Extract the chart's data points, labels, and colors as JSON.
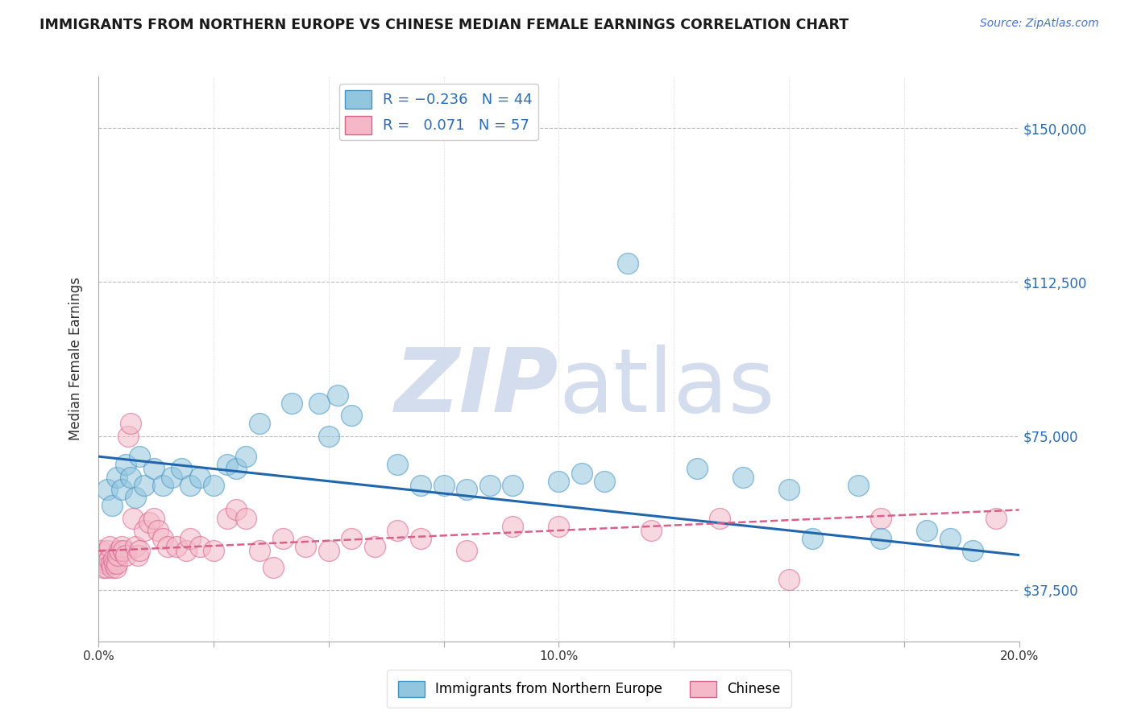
{
  "title": "IMMIGRANTS FROM NORTHERN EUROPE VS CHINESE MEDIAN FEMALE EARNINGS CORRELATION CHART",
  "source": "Source: ZipAtlas.com",
  "ylabel": "Median Female Earnings",
  "xlim": [
    0.0,
    20.0
  ],
  "ylim": [
    25000,
    162500
  ],
  "yticks": [
    37500,
    75000,
    112500,
    150000
  ],
  "ytick_labels": [
    "$37,500",
    "$75,000",
    "$112,500",
    "$150,000"
  ],
  "xticks": [
    0.0,
    2.5,
    5.0,
    7.5,
    10.0,
    12.5,
    15.0,
    17.5,
    20.0
  ],
  "xtick_labels": [
    "0.0%",
    "",
    "",
    "",
    "10.0%",
    "",
    "",
    "",
    "20.0%"
  ],
  "blue_R": -0.236,
  "blue_N": 44,
  "pink_R": 0.071,
  "pink_N": 57,
  "blue_color": "#92c5de",
  "pink_color": "#f4b8c8",
  "blue_edge": "#4393c3",
  "pink_edge": "#d6618a",
  "trend_blue_color": "#2166ac",
  "trend_pink_color": "#d6618a",
  "background": "#ffffff",
  "grid_color": "#bbbbbb",
  "watermark_color": "#cdd8ea",
  "legend_blue_label": "Immigrants from Northern Europe",
  "legend_pink_label": "Chinese",
  "blue_scatter": [
    [
      0.2,
      62000
    ],
    [
      0.3,
      58000
    ],
    [
      0.4,
      65000
    ],
    [
      0.5,
      62000
    ],
    [
      0.6,
      68000
    ],
    [
      0.7,
      65000
    ],
    [
      0.8,
      60000
    ],
    [
      0.9,
      70000
    ],
    [
      1.0,
      63000
    ],
    [
      1.2,
      67000
    ],
    [
      1.4,
      63000
    ],
    [
      1.6,
      65000
    ],
    [
      1.8,
      67000
    ],
    [
      2.0,
      63000
    ],
    [
      2.2,
      65000
    ],
    [
      2.5,
      63000
    ],
    [
      2.8,
      68000
    ],
    [
      3.0,
      67000
    ],
    [
      3.2,
      70000
    ],
    [
      3.5,
      78000
    ],
    [
      4.2,
      83000
    ],
    [
      4.8,
      83000
    ],
    [
      5.0,
      75000
    ],
    [
      5.2,
      85000
    ],
    [
      5.5,
      80000
    ],
    [
      6.5,
      68000
    ],
    [
      7.0,
      63000
    ],
    [
      7.5,
      63000
    ],
    [
      8.0,
      62000
    ],
    [
      8.5,
      63000
    ],
    [
      9.0,
      63000
    ],
    [
      10.0,
      64000
    ],
    [
      10.5,
      66000
    ],
    [
      11.0,
      64000
    ],
    [
      11.5,
      117000
    ],
    [
      13.0,
      67000
    ],
    [
      14.0,
      65000
    ],
    [
      15.0,
      62000
    ],
    [
      15.5,
      50000
    ],
    [
      16.5,
      63000
    ],
    [
      17.0,
      50000
    ],
    [
      18.0,
      52000
    ],
    [
      18.5,
      50000
    ],
    [
      19.0,
      47000
    ]
  ],
  "pink_scatter": [
    [
      0.05,
      47000
    ],
    [
      0.08,
      45000
    ],
    [
      0.1,
      43000
    ],
    [
      0.12,
      45000
    ],
    [
      0.15,
      44000
    ],
    [
      0.18,
      43000
    ],
    [
      0.2,
      47000
    ],
    [
      0.22,
      45000
    ],
    [
      0.25,
      48000
    ],
    [
      0.28,
      44000
    ],
    [
      0.3,
      43000
    ],
    [
      0.33,
      45000
    ],
    [
      0.35,
      44000
    ],
    [
      0.38,
      43000
    ],
    [
      0.4,
      44000
    ],
    [
      0.42,
      46000
    ],
    [
      0.45,
      47000
    ],
    [
      0.5,
      48000
    ],
    [
      0.55,
      47000
    ],
    [
      0.6,
      46000
    ],
    [
      0.65,
      75000
    ],
    [
      0.7,
      78000
    ],
    [
      0.75,
      55000
    ],
    [
      0.8,
      48000
    ],
    [
      0.85,
      46000
    ],
    [
      0.9,
      47000
    ],
    [
      1.0,
      52000
    ],
    [
      1.1,
      54000
    ],
    [
      1.2,
      55000
    ],
    [
      1.3,
      52000
    ],
    [
      1.4,
      50000
    ],
    [
      1.5,
      48000
    ],
    [
      1.7,
      48000
    ],
    [
      1.9,
      47000
    ],
    [
      2.0,
      50000
    ],
    [
      2.2,
      48000
    ],
    [
      2.5,
      47000
    ],
    [
      2.8,
      55000
    ],
    [
      3.0,
      57000
    ],
    [
      3.2,
      55000
    ],
    [
      3.5,
      47000
    ],
    [
      3.8,
      43000
    ],
    [
      4.0,
      50000
    ],
    [
      4.5,
      48000
    ],
    [
      5.0,
      47000
    ],
    [
      5.5,
      50000
    ],
    [
      6.0,
      48000
    ],
    [
      6.5,
      52000
    ],
    [
      7.0,
      50000
    ],
    [
      8.0,
      47000
    ],
    [
      9.0,
      53000
    ],
    [
      10.0,
      53000
    ],
    [
      12.0,
      52000
    ],
    [
      13.5,
      55000
    ],
    [
      15.0,
      40000
    ],
    [
      17.0,
      55000
    ],
    [
      19.5,
      55000
    ]
  ],
  "blue_trend_x": [
    0.0,
    20.0
  ],
  "blue_trend_y": [
    70000,
    46000
  ],
  "pink_trend_x": [
    0.0,
    20.0
  ],
  "pink_trend_y": [
    47000,
    57000
  ]
}
